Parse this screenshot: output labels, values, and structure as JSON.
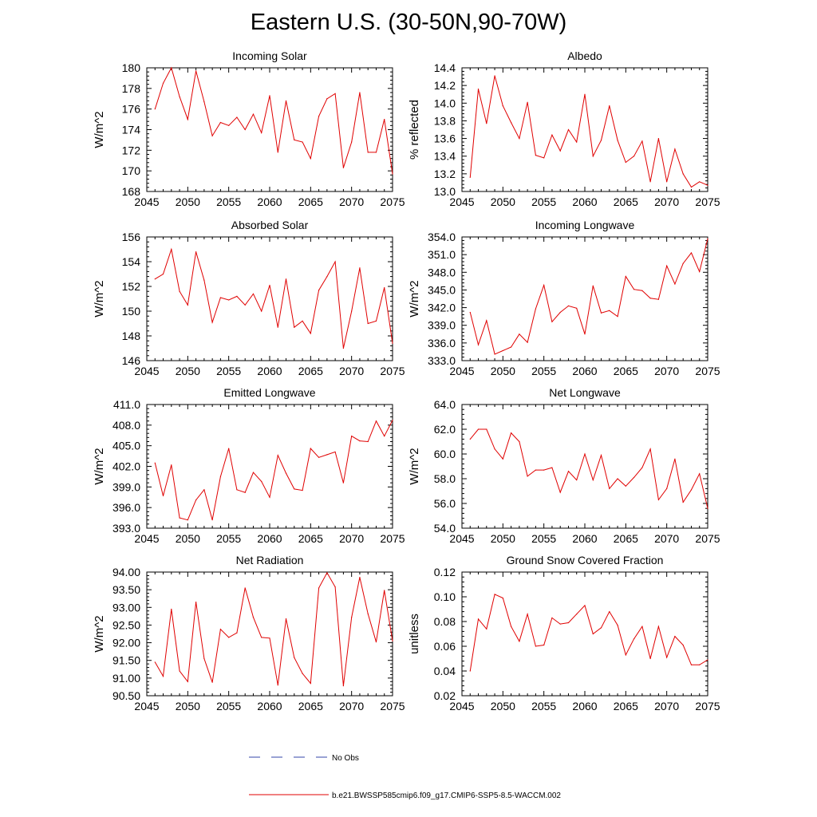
{
  "title": "Eastern U.S. (30-50N,90-70W)",
  "colors": {
    "series": "#e00000",
    "obs": "#3344aa",
    "axis": "#000000"
  },
  "legend": {
    "obs_label": "No Obs",
    "model_label": "b.e21.BWSSP585cmip6.f09_g17.CMIP6-SSP5-8.5-WACCM.002"
  },
  "chart_data": [
    {
      "type": "line",
      "title": "Incoming Solar",
      "xlabel": "",
      "ylabel": "W/m^2",
      "xlim": [
        2045,
        2075
      ],
      "ylim": [
        168,
        180
      ],
      "xticks": [
        2045,
        2050,
        2055,
        2060,
        2065,
        2070,
        2075
      ],
      "yticks": [
        168,
        170,
        172,
        174,
        176,
        178,
        180
      ],
      "ytick_labels": [
        "168",
        "170",
        "172",
        "174",
        "176",
        "178",
        "180"
      ],
      "x": [
        2046,
        2047,
        2048,
        2049,
        2050,
        2051,
        2052,
        2053,
        2054,
        2055,
        2056,
        2057,
        2058,
        2059,
        2060,
        2061,
        2062,
        2063,
        2064,
        2065,
        2066,
        2067,
        2068,
        2069,
        2070,
        2071,
        2072,
        2073,
        2074,
        2075
      ],
      "values": [
        176.0,
        178.5,
        180.0,
        177.2,
        175.0,
        179.7,
        176.7,
        173.4,
        174.7,
        174.4,
        175.2,
        174.0,
        175.5,
        173.7,
        177.3,
        171.8,
        176.8,
        173.0,
        172.8,
        171.2,
        175.3,
        177.0,
        177.5,
        170.3,
        172.8,
        177.6,
        171.8,
        171.8,
        175.0,
        169.7
      ]
    },
    {
      "type": "line",
      "title": "Albedo",
      "xlabel": "",
      "ylabel": "% reflected",
      "xlim": [
        2045,
        2075
      ],
      "ylim": [
        13.0,
        14.4
      ],
      "xticks": [
        2045,
        2050,
        2055,
        2060,
        2065,
        2070,
        2075
      ],
      "yticks": [
        13.0,
        13.2,
        13.4,
        13.6,
        13.8,
        14.0,
        14.2,
        14.4
      ],
      "ytick_labels": [
        "13.0",
        "13.2",
        "13.4",
        "13.6",
        "13.8",
        "14.0",
        "14.2",
        "14.4"
      ],
      "x": [
        2046,
        2047,
        2048,
        2049,
        2050,
        2051,
        2052,
        2053,
        2054,
        2055,
        2056,
        2057,
        2058,
        2059,
        2060,
        2061,
        2062,
        2063,
        2064,
        2065,
        2066,
        2067,
        2068,
        2069,
        2070,
        2071,
        2072,
        2073,
        2074,
        2075
      ],
      "values": [
        13.16,
        14.16,
        13.77,
        14.31,
        13.97,
        13.78,
        13.6,
        14.01,
        13.41,
        13.38,
        13.64,
        13.46,
        13.7,
        13.56,
        14.1,
        13.4,
        13.58,
        13.97,
        13.58,
        13.33,
        13.4,
        13.57,
        13.11,
        13.6,
        13.11,
        13.48,
        13.2,
        13.05,
        13.11,
        13.07
      ]
    },
    {
      "type": "line",
      "title": "Absorbed Solar",
      "xlabel": "",
      "ylabel": "W/m^2",
      "xlim": [
        2045,
        2075
      ],
      "ylim": [
        146,
        156
      ],
      "xticks": [
        2045,
        2050,
        2055,
        2060,
        2065,
        2070,
        2075
      ],
      "yticks": [
        146,
        148,
        150,
        152,
        154,
        156
      ],
      "ytick_labels": [
        "146",
        "148",
        "150",
        "152",
        "154",
        "156"
      ],
      "x": [
        2046,
        2047,
        2048,
        2049,
        2050,
        2051,
        2052,
        2053,
        2054,
        2055,
        2056,
        2057,
        2058,
        2059,
        2060,
        2061,
        2062,
        2063,
        2064,
        2065,
        2066,
        2067,
        2068,
        2069,
        2070,
        2071,
        2072,
        2073,
        2074,
        2075
      ],
      "values": [
        152.6,
        153.0,
        155.0,
        151.6,
        150.5,
        154.8,
        152.5,
        149.1,
        151.1,
        150.9,
        151.2,
        150.5,
        151.4,
        150.0,
        152.1,
        148.7,
        152.6,
        148.7,
        149.2,
        148.2,
        151.7,
        152.8,
        154.0,
        147.0,
        150.0,
        153.5,
        149.0,
        149.2,
        151.9,
        147.4
      ]
    },
    {
      "type": "line",
      "title": "Incoming Longwave",
      "xlabel": "",
      "ylabel": "W/m^2",
      "xlim": [
        2045,
        2075
      ],
      "ylim": [
        333.0,
        354.0
      ],
      "xticks": [
        2045,
        2050,
        2055,
        2060,
        2065,
        2070,
        2075
      ],
      "yticks": [
        333.0,
        336.0,
        339.0,
        342.0,
        345.0,
        348.0,
        351.0,
        354.0
      ],
      "ytick_labels": [
        "333.0",
        "336.0",
        "339.0",
        "342.0",
        "345.0",
        "348.0",
        "351.0",
        "354.0"
      ],
      "x": [
        2046,
        2047,
        2048,
        2049,
        2050,
        2051,
        2052,
        2053,
        2054,
        2055,
        2056,
        2057,
        2058,
        2059,
        2060,
        2061,
        2062,
        2063,
        2064,
        2065,
        2066,
        2067,
        2068,
        2069,
        2070,
        2071,
        2072,
        2073,
        2074,
        2075
      ],
      "values": [
        341.2,
        335.7,
        339.8,
        334.1,
        334.7,
        335.3,
        337.5,
        336.1,
        341.8,
        345.8,
        339.6,
        341.2,
        342.3,
        341.9,
        337.5,
        345.7,
        341.1,
        341.5,
        340.5,
        347.3,
        345.1,
        344.9,
        343.6,
        343.4,
        349.1,
        346.0,
        349.5,
        351.3,
        348.1,
        353.7
      ]
    },
    {
      "type": "line",
      "title": "Emitted Longwave",
      "xlabel": "",
      "ylabel": "W/m^2",
      "xlim": [
        2045,
        2075
      ],
      "ylim": [
        393.0,
        411.0
      ],
      "xticks": [
        2045,
        2050,
        2055,
        2060,
        2065,
        2070,
        2075
      ],
      "yticks": [
        393.0,
        396.0,
        399.0,
        402.0,
        405.0,
        408.0,
        411.0
      ],
      "ytick_labels": [
        "393.0",
        "396.0",
        "399.0",
        "402.0",
        "405.0",
        "408.0",
        "411.0"
      ],
      "x": [
        2046,
        2047,
        2048,
        2049,
        2050,
        2051,
        2052,
        2053,
        2054,
        2055,
        2056,
        2057,
        2058,
        2059,
        2060,
        2061,
        2062,
        2063,
        2064,
        2065,
        2066,
        2067,
        2068,
        2069,
        2070,
        2071,
        2072,
        2073,
        2074,
        2075
      ],
      "values": [
        402.5,
        397.7,
        402.2,
        394.5,
        394.2,
        397.1,
        398.6,
        394.2,
        400.5,
        404.6,
        398.6,
        398.2,
        401.1,
        399.8,
        397.5,
        403.6,
        401.0,
        398.7,
        398.5,
        404.6,
        403.3,
        403.7,
        404.1,
        399.6,
        406.4,
        405.7,
        405.6,
        408.6,
        406.4,
        408.7
      ]
    },
    {
      "type": "line",
      "title": "Net Longwave",
      "xlabel": "",
      "ylabel": "W/m^2",
      "xlim": [
        2045,
        2075
      ],
      "ylim": [
        54.0,
        64.0
      ],
      "xticks": [
        2045,
        2050,
        2055,
        2060,
        2065,
        2070,
        2075
      ],
      "yticks": [
        54.0,
        56.0,
        58.0,
        60.0,
        62.0,
        64.0
      ],
      "ytick_labels": [
        "54.0",
        "56.0",
        "58.0",
        "60.0",
        "62.0",
        "64.0"
      ],
      "x": [
        2046,
        2047,
        2048,
        2049,
        2050,
        2051,
        2052,
        2053,
        2054,
        2055,
        2056,
        2057,
        2058,
        2059,
        2060,
        2061,
        2062,
        2063,
        2064,
        2065,
        2066,
        2067,
        2068,
        2069,
        2070,
        2071,
        2072,
        2073,
        2074,
        2075
      ],
      "values": [
        61.2,
        62.0,
        62.0,
        60.4,
        59.6,
        61.7,
        61.0,
        58.2,
        58.7,
        58.7,
        58.9,
        56.9,
        58.6,
        57.9,
        60.0,
        57.9,
        59.9,
        57.2,
        58.0,
        57.4,
        58.1,
        58.9,
        60.4,
        56.3,
        57.2,
        59.6,
        56.1,
        57.1,
        58.4,
        55.6
      ]
    },
    {
      "type": "line",
      "title": "Net Radiation",
      "xlabel": "",
      "ylabel": "W/m^2",
      "xlim": [
        2045,
        2075
      ],
      "ylim": [
        90.5,
        94.0
      ],
      "xticks": [
        2045,
        2050,
        2055,
        2060,
        2065,
        2070,
        2075
      ],
      "yticks": [
        90.5,
        91.0,
        91.5,
        92.0,
        92.5,
        93.0,
        93.5,
        94.0
      ],
      "ytick_labels": [
        "90.50",
        "91.00",
        "91.50",
        "92.00",
        "92.50",
        "93.00",
        "93.50",
        "94.00"
      ],
      "x": [
        2046,
        2047,
        2048,
        2049,
        2050,
        2051,
        2052,
        2053,
        2054,
        2055,
        2056,
        2057,
        2058,
        2059,
        2060,
        2061,
        2062,
        2063,
        2064,
        2065,
        2066,
        2067,
        2068,
        2069,
        2070,
        2071,
        2072,
        2073,
        2074,
        2075
      ],
      "values": [
        91.45,
        91.05,
        92.95,
        91.2,
        90.9,
        93.15,
        91.55,
        90.88,
        92.38,
        92.15,
        92.28,
        93.55,
        92.72,
        92.15,
        92.13,
        90.8,
        92.68,
        91.58,
        91.13,
        90.85,
        93.55,
        93.98,
        93.58,
        90.78,
        92.72,
        93.85,
        92.82,
        92.02,
        93.48,
        92.05
      ]
    },
    {
      "type": "line",
      "title": "Ground Snow Covered Fraction",
      "xlabel": "",
      "ylabel": "unitless",
      "xlim": [
        2045,
        2075
      ],
      "ylim": [
        0.02,
        0.12
      ],
      "xticks": [
        2045,
        2050,
        2055,
        2060,
        2065,
        2070,
        2075
      ],
      "yticks": [
        0.02,
        0.04,
        0.06,
        0.08,
        0.1,
        0.12
      ],
      "ytick_labels": [
        "0.02",
        "0.04",
        "0.06",
        "0.08",
        "0.10",
        "0.12"
      ],
      "x": [
        2046,
        2047,
        2048,
        2049,
        2050,
        2051,
        2052,
        2053,
        2054,
        2055,
        2056,
        2057,
        2058,
        2059,
        2060,
        2061,
        2062,
        2063,
        2064,
        2065,
        2066,
        2067,
        2068,
        2069,
        2070,
        2071,
        2072,
        2073,
        2074,
        2075
      ],
      "values": [
        0.04,
        0.082,
        0.074,
        0.102,
        0.099,
        0.076,
        0.064,
        0.086,
        0.06,
        0.061,
        0.083,
        0.078,
        0.079,
        0.086,
        0.093,
        0.07,
        0.075,
        0.088,
        0.077,
        0.053,
        0.066,
        0.076,
        0.05,
        0.076,
        0.051,
        0.068,
        0.061,
        0.045,
        0.045,
        0.049
      ]
    }
  ]
}
